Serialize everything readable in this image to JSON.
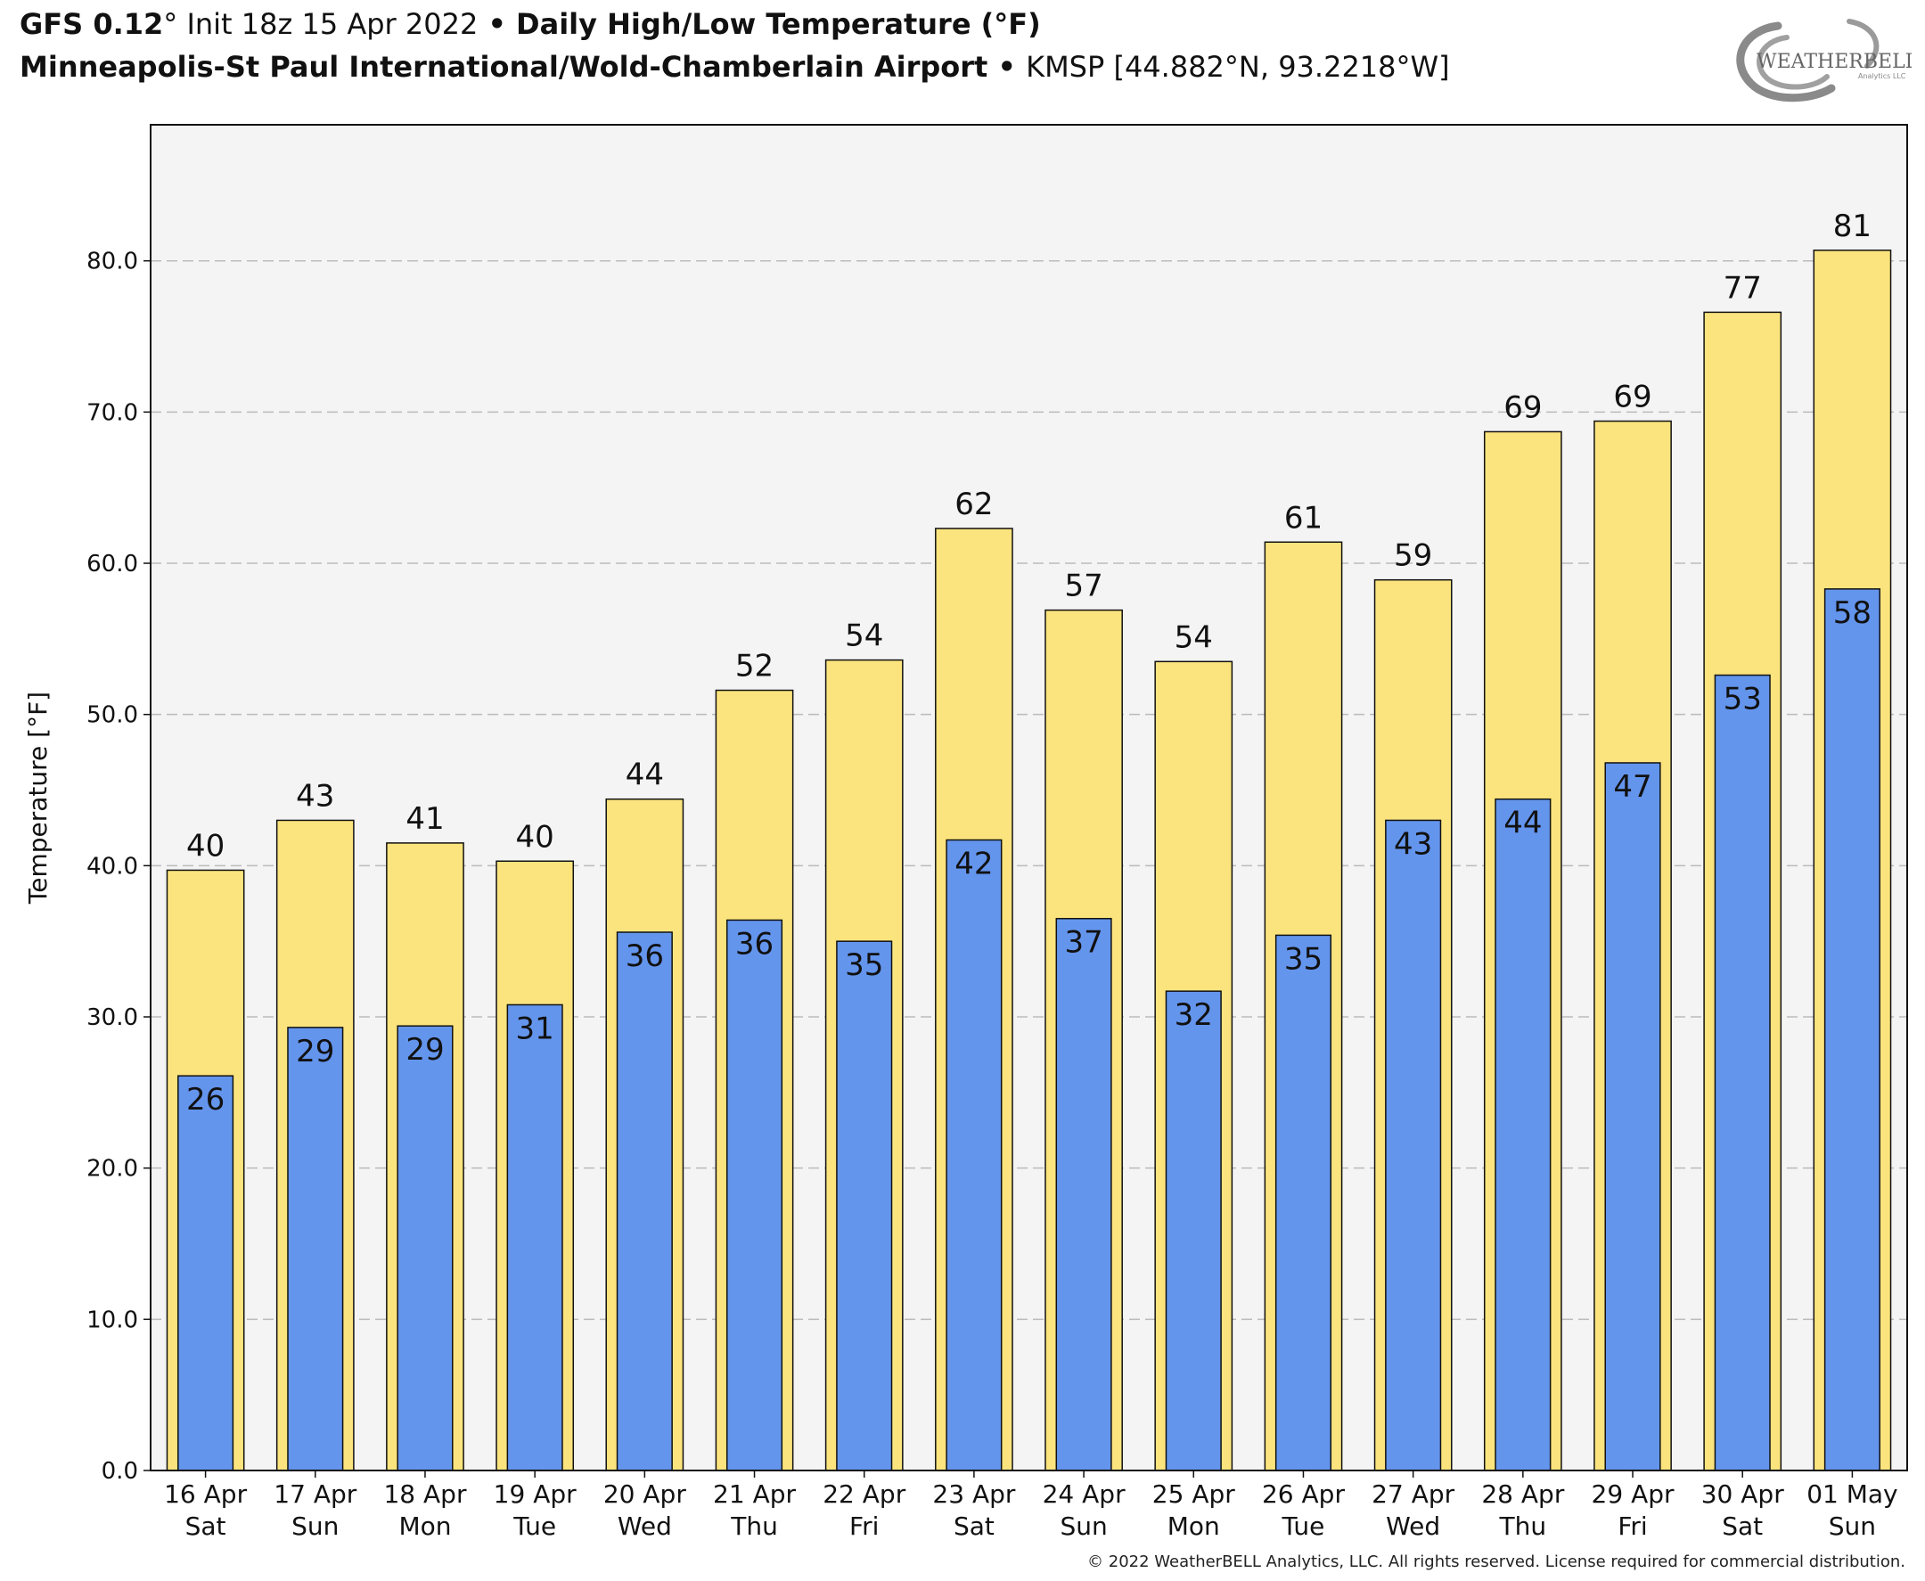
{
  "header": {
    "model": "GFS 0.12",
    "deg": "°",
    "init": " Init 18z 15 Apr 2022",
    "bullet": " • ",
    "product": "Daily High/Low Temperature (°F)",
    "station": "Minneapolis-St Paul International/Wold-Chamberlain Airport",
    "station_info": "KMSP [44.882°N, 93.2218°W]"
  },
  "logo": {
    "text": "WEATHERBELL",
    "sub": "Analytics LLC"
  },
  "copyright": "© 2022 WeatherBELL Analytics, LLC. All rights reserved. License required for commercial distribution.",
  "chart_data": {
    "type": "bar",
    "ylabel": "Temperature [°F]",
    "ylim": [
      0,
      89
    ],
    "yticks": [
      0,
      10,
      20,
      30,
      40,
      50,
      60,
      70,
      80
    ],
    "ytick_labels": [
      "0.0",
      "10.0",
      "20.0",
      "30.0",
      "40.0",
      "50.0",
      "60.0",
      "70.0",
      "80.0"
    ],
    "grid": true,
    "categories": [
      "16 Apr",
      "17 Apr",
      "18 Apr",
      "19 Apr",
      "20 Apr",
      "21 Apr",
      "22 Apr",
      "23 Apr",
      "24 Apr",
      "25 Apr",
      "26 Apr",
      "27 Apr",
      "28 Apr",
      "29 Apr",
      "30 Apr",
      "01 May"
    ],
    "weekdays": [
      "Sat",
      "Sun",
      "Mon",
      "Tue",
      "Wed",
      "Thu",
      "Fri",
      "Sat",
      "Sun",
      "Mon",
      "Tue",
      "Wed",
      "Thu",
      "Fri",
      "Sat",
      "Sun"
    ],
    "series": [
      {
        "values": [
          39.7,
          43.0,
          41.5,
          40.3,
          44.4,
          51.6,
          53.6,
          62.3,
          56.9,
          53.5,
          61.4,
          58.9,
          68.7,
          69.4,
          76.6,
          80.7
        ],
        "labels": [
          "40",
          "43",
          "41",
          "40",
          "44",
          "52",
          "54",
          "62",
          "57",
          "54",
          "61",
          "59",
          "69",
          "69",
          "77",
          "81"
        ],
        "color": "#fbe47e"
      },
      {
        "values": [
          26.1,
          29.3,
          29.4,
          30.8,
          35.6,
          36.4,
          35.0,
          41.7,
          36.5,
          31.7,
          35.4,
          43.0,
          44.4,
          46.8,
          52.6,
          58.3
        ],
        "labels": [
          "26",
          "29",
          "29",
          "31",
          "36",
          "36",
          "35",
          "42",
          "37",
          "32",
          "35",
          "43",
          "44",
          "47",
          "53",
          "58"
        ],
        "color": "#6495ed"
      }
    ],
    "plot_bg": "#f4f4f4",
    "grid_color": "#bbbbbb"
  }
}
